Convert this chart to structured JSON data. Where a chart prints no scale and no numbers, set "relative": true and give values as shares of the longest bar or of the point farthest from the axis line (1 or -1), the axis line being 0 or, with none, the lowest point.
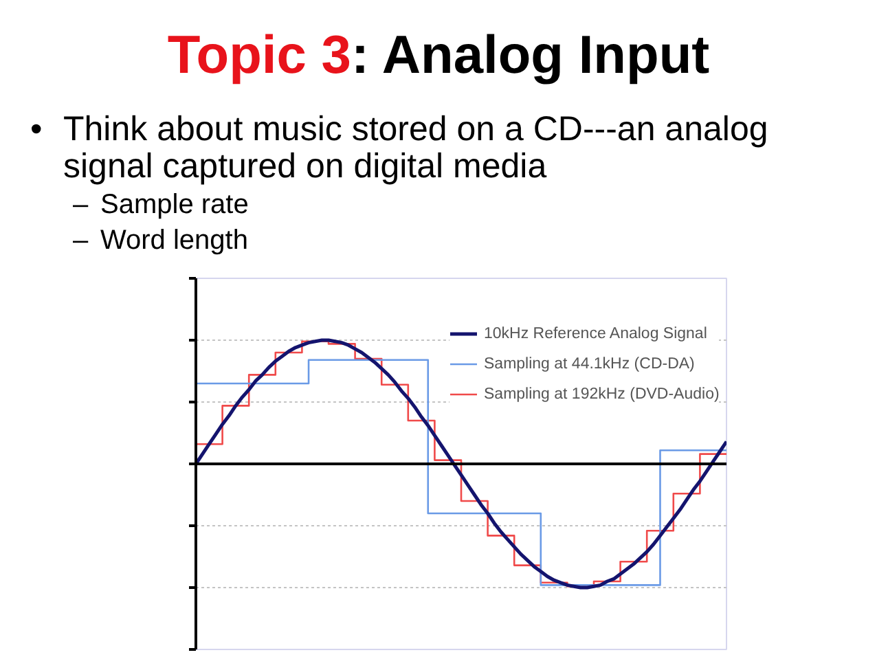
{
  "chart_data": {
    "type": "step",
    "title": "Topic 3: Analog Input",
    "annotations": [
      "• Think about music stored on a CD---an analog signal captured on digital media",
      "– Sample rate",
      "– Word length"
    ],
    "relative": true,
    "grid": "y",
    "legend": "top right",
    "ref_lines": [
      {
        "axis": "y",
        "value": 0.5,
        "color": "#c4c4c4",
        "line_style": "dotted"
      },
      {
        "axis": "y",
        "value": -0.5,
        "color": "#c4c4c4",
        "line_style": "dotted"
      }
    ],
    "categories": [
      null,
      null,
      null,
      null,
      null,
      null,
      null,
      null,
      null,
      null,
      null,
      null,
      null,
      null,
      null,
      null,
      null,
      null,
      null,
      null,
      null,
      null,
      null,
      null,
      null,
      null,
      null,
      null,
      null,
      null,
      null,
      null,
      null,
      null,
      null,
      null,
      null,
      null,
      null,
      null,
      null,
      null,
      null,
      null,
      null,
      null,
      null,
      null,
      null,
      null,
      null,
      null,
      null,
      null,
      null,
      null,
      null,
      null,
      null,
      null,
      null,
      null,
      null,
      null,
      null,
      null,
      null,
      null,
      null,
      null,
      null,
      null,
      null,
      null,
      null,
      null,
      null,
      null,
      null,
      null,
      null
    ],
    "series": [
      {
        "name": "10kHz Reference Analog Signal",
        "type": "line",
        "color": "#14146e",
        "values": [
          0,
          0.08,
          0.16,
          0.24,
          0.32,
          0.39,
          0.47,
          0.54,
          0.6,
          0.67,
          0.72,
          0.78,
          0.83,
          0.87,
          0.91,
          0.94,
          0.96,
          0.98,
          0.99,
          1,
          1,
          0.99,
          0.98,
          0.96,
          0.93,
          0.9,
          0.86,
          0.82,
          0.77,
          0.72,
          0.66,
          0.59,
          0.53,
          0.46,
          0.38,
          0.31,
          0.23,
          0.15,
          0.07,
          -0.01,
          -0.09,
          -0.17,
          -0.25,
          -0.33,
          -0.4,
          -0.48,
          -0.55,
          -0.61,
          -0.67,
          -0.73,
          -0.78,
          -0.83,
          -0.87,
          -0.91,
          -0.94,
          -0.96,
          -0.98,
          -0.99,
          -1,
          -1,
          -0.99,
          -0.98,
          -0.95,
          -0.93,
          -0.89,
          -0.85,
          -0.81,
          -0.76,
          -0.71,
          -0.65,
          -0.58,
          -0.51,
          -0.44,
          -0.37,
          -0.29,
          -0.21,
          -0.14,
          -0.06,
          0.02,
          0.1,
          0.18
        ]
      },
      {
        "name": "Sampling at 44.1kHz (CD-DA)",
        "color": "#6a9ae6",
        "values": [
          0.65,
          0.65,
          0.65,
          0.65,
          0.65,
          0.65,
          0.65,
          0.65,
          0.65,
          0.65,
          0.65,
          0.65,
          0.65,
          0.65,
          0.65,
          0.65,
          0.65,
          0.84,
          0.84,
          0.84,
          0.84,
          0.84,
          0.84,
          0.84,
          0.84,
          0.84,
          0.84,
          0.84,
          0.84,
          0.84,
          0.84,
          0.84,
          0.84,
          0.84,
          0.84,
          -0.4,
          -0.4,
          -0.4,
          -0.4,
          -0.4,
          -0.4,
          -0.4,
          -0.4,
          -0.4,
          -0.4,
          -0.4,
          -0.4,
          -0.4,
          -0.4,
          -0.4,
          -0.4,
          -0.4,
          -0.98,
          -0.98,
          -0.98,
          -0.98,
          -0.98,
          -0.98,
          -0.98,
          -0.98,
          -0.98,
          -0.98,
          -0.98,
          -0.98,
          -0.98,
          -0.98,
          -0.98,
          -0.98,
          -0.98,
          -0.98,
          0.11,
          0.11,
          0.11,
          0.11,
          0.11,
          0.11,
          0.11,
          0.11,
          0.11,
          0.11,
          0.11
        ]
      },
      {
        "name": "Sampling at 192kHz (DVD-Audio)",
        "color": "#f04a4a",
        "values": [
          0.16,
          0.16,
          0.16,
          0.16,
          0.47,
          0.47,
          0.47,
          0.47,
          0.72,
          0.72,
          0.72,
          0.72,
          0.9,
          0.9,
          0.9,
          0.9,
          0.99,
          0.99,
          0.99,
          0.99,
          0.97,
          0.97,
          0.97,
          0.97,
          0.85,
          0.85,
          0.85,
          0.85,
          0.64,
          0.64,
          0.64,
          0.64,
          0.35,
          0.35,
          0.35,
          0.35,
          0.03,
          0.03,
          0.03,
          0.03,
          -0.3,
          -0.3,
          -0.3,
          -0.3,
          -0.58,
          -0.58,
          -0.58,
          -0.58,
          -0.82,
          -0.82,
          -0.82,
          -0.82,
          -0.96,
          -0.96,
          -0.96,
          -0.96,
          -0.99,
          -0.99,
          -0.99,
          -0.99,
          -0.95,
          -0.95,
          -0.95,
          -0.95,
          -0.79,
          -0.79,
          -0.79,
          -0.79,
          -0.54,
          -0.54,
          -0.54,
          -0.54,
          -0.24,
          -0.24,
          -0.24,
          -0.24,
          0.08,
          0.08,
          0.08,
          0.08,
          0.08
        ]
      }
    ]
  }
}
